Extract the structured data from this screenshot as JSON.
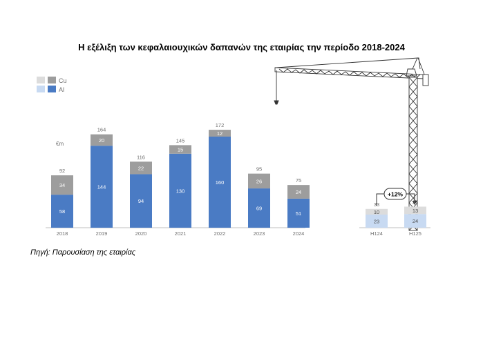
{
  "title": "Η εξέλιξη των κεφαλαιουχικών δαπανών της εταιρίας την περίοδο 2018-2024",
  "source_note": "Πηγή: Παρουσίαση της εταιρίας",
  "colors": {
    "cu_dark": "#9d9d9d",
    "al_dark": "#4a7bc4",
    "cu_light": "#dcdcdc",
    "al_light": "#c8daf2",
    "axis": "#bfbfbf",
    "text_gray": "#6d6d6d"
  },
  "chart_data": {
    "type": "bar",
    "stacked": true,
    "unit_label": "€m",
    "legend": [
      {
        "name": "Cu",
        "key": "cu"
      },
      {
        "name": "Al",
        "key": "al"
      }
    ],
    "categories": [
      "2018",
      "2019",
      "2020",
      "2021",
      "2022",
      "2023",
      "2024",
      "H124",
      "H125"
    ],
    "series": [
      {
        "name": "Al",
        "values": [
          58,
          144,
          94,
          130,
          160,
          69,
          51,
          23,
          24
        ]
      },
      {
        "name": "Cu",
        "values": [
          34,
          20,
          22,
          15,
          12,
          26,
          24,
          10,
          13
        ]
      }
    ],
    "totals": [
      92,
      164,
      116,
      145,
      172,
      95,
      75,
      33,
      37
    ],
    "annotation": "+12%"
  }
}
